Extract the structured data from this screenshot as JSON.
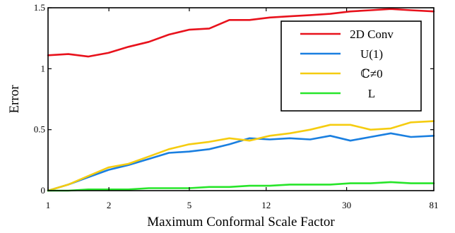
{
  "chart_data": {
    "type": "line",
    "title": "",
    "xlabel": "Maximum Conformal Scale Factor",
    "ylabel": "Error",
    "x_scale": "log",
    "xlim": [
      1,
      81
    ],
    "ylim": [
      0,
      1.5
    ],
    "x_ticks": [
      1,
      2,
      5,
      12,
      30,
      81
    ],
    "x_tick_labels": [
      "1",
      "2",
      "5",
      "12",
      "30",
      "81"
    ],
    "y_ticks": [
      0,
      0.5,
      1,
      1.5
    ],
    "y_tick_labels": [
      "0",
      "0.5",
      "1",
      "1.5"
    ],
    "grid": false,
    "legend_position": "top-right",
    "x": [
      1,
      1.26,
      1.58,
      1.99,
      2.5,
      3.15,
      3.96,
      4.98,
      6.27,
      7.89,
      9.93,
      12.5,
      15.7,
      19.8,
      24.9,
      31.3,
      39.4,
      49.6,
      62.4,
      81
    ],
    "series": [
      {
        "name": "2D Conv",
        "color": "#e8121c",
        "values": [
          1.11,
          1.12,
          1.1,
          1.13,
          1.18,
          1.22,
          1.28,
          1.32,
          1.33,
          1.4,
          1.4,
          1.42,
          1.43,
          1.44,
          1.45,
          1.47,
          1.48,
          1.49,
          1.48,
          1.47
        ]
      },
      {
        "name": "U(1)",
        "color": "#1a7fe0",
        "values": [
          0.0,
          0.05,
          0.11,
          0.17,
          0.21,
          0.26,
          0.31,
          0.32,
          0.34,
          0.38,
          0.43,
          0.42,
          0.43,
          0.42,
          0.45,
          0.41,
          0.44,
          0.47,
          0.44,
          0.45
        ]
      },
      {
        "name": "ℂ≠0",
        "color": "#f5cc10",
        "values": [
          0.0,
          0.05,
          0.12,
          0.19,
          0.22,
          0.28,
          0.34,
          0.38,
          0.4,
          0.43,
          0.41,
          0.45,
          0.47,
          0.5,
          0.54,
          0.54,
          0.5,
          0.51,
          0.56,
          0.57
        ]
      },
      {
        "name": "L",
        "color": "#27e52a",
        "values": [
          0.0,
          0.0,
          0.01,
          0.01,
          0.01,
          0.02,
          0.02,
          0.02,
          0.03,
          0.03,
          0.04,
          0.04,
          0.05,
          0.05,
          0.05,
          0.06,
          0.06,
          0.07,
          0.06,
          0.06
        ]
      }
    ]
  }
}
